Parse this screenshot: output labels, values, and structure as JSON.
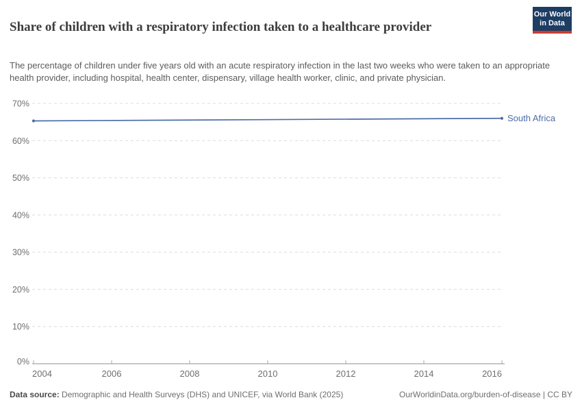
{
  "header": {
    "title": "Share of children with a respiratory infection taken to a healthcare provider",
    "subtitle": "The percentage of children under five years old with an acute respiratory infection in the last two weeks who were taken to an appropriate health provider, including hospital, health center, dispensary, village health worker, clinic, and private physician.",
    "logo_line1": "Our World",
    "logo_line2": "in Data",
    "logo_colors": {
      "background": "#1d3d63",
      "accent_bar": "#c83c33",
      "text": "#ffffff"
    }
  },
  "chart_data": {
    "type": "line",
    "title": "Share of children with a respiratory infection taken to a healthcare provider",
    "xlabel": "",
    "ylabel": "",
    "xlim": [
      2004,
      2016
    ],
    "ylim": [
      0,
      70
    ],
    "xticks": [
      2004,
      2006,
      2008,
      2010,
      2012,
      2014,
      2016
    ],
    "yticks": [
      0,
      10,
      20,
      30,
      40,
      50,
      60,
      70
    ],
    "ytick_suffix": "%",
    "grid": "horizontal-dashed",
    "legend_position": "end-of-line-label",
    "series": [
      {
        "name": "South Africa",
        "color": "#4C6CA8",
        "points": [
          [
            2004,
            65.3
          ],
          [
            2016,
            66.0
          ]
        ]
      }
    ]
  },
  "footer": {
    "source_label": "Data source:",
    "source_text": " Demographic and Health Surveys (DHS) and UNICEF, via World Bank (2025)",
    "link_text": "OurWorldinData.org/burden-of-disease | CC BY"
  },
  "colors": {
    "grid": "#dcdcdc",
    "axis": "#8f8f8f",
    "tick": "#aaaaaa",
    "axis_label": "#6e6e6e",
    "title_text": "#3d3d3d",
    "subtitle_text": "#5b5b5b"
  }
}
